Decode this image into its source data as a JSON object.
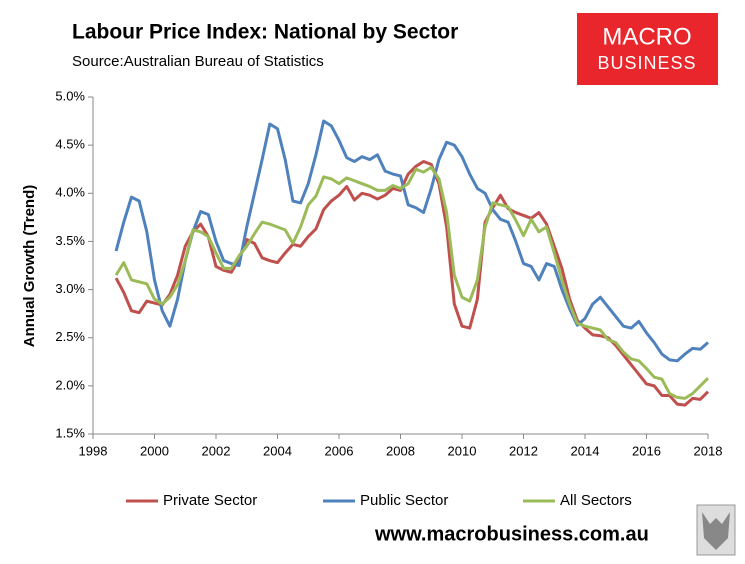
{
  "chart_data": {
    "type": "line",
    "title": "Labour Price Index: National by Sector",
    "subtitle": "Source:Australian Bureau of Statistics",
    "y_label": "Annual Growth (Trend)",
    "logo": {
      "line1": "MACRO",
      "line2": "BUSINESS"
    },
    "footer": "www.macrobusiness.com.au",
    "xlim": [
      1998,
      2018
    ],
    "xticks": [
      1998,
      2000,
      2002,
      2004,
      2006,
      2008,
      2010,
      2012,
      2014,
      2016,
      2018
    ],
    "ylim": [
      1.5,
      5
    ],
    "yticks": [
      {
        "value": 1.5,
        "label": "1.5%"
      },
      {
        "value": 2,
        "label": "2.0%"
      },
      {
        "value": 2.5,
        "label": "2.5%"
      },
      {
        "value": 3,
        "label": "3.0%"
      },
      {
        "value": 3.5,
        "label": "3.5%"
      },
      {
        "value": 4,
        "label": "4.0%"
      },
      {
        "value": 4.5,
        "label": "4.5%"
      },
      {
        "value": 5,
        "label": "5.0%"
      }
    ],
    "grid": false,
    "legend": "bottom",
    "x": [
      1998.75,
      1999,
      1999.25,
      1999.5,
      1999.75,
      2000,
      2000.25,
      2000.5,
      2000.75,
      2001,
      2001.25,
      2001.5,
      2001.75,
      2002,
      2002.25,
      2002.5,
      2002.75,
      2003,
      2003.25,
      2003.5,
      2003.75,
      2004,
      2004.25,
      2004.5,
      2004.75,
      2005,
      2005.25,
      2005.5,
      2005.75,
      2006,
      2006.25,
      2006.5,
      2006.75,
      2007,
      2007.25,
      2007.5,
      2007.75,
      2008,
      2008.25,
      2008.5,
      2008.75,
      2009,
      2009.25,
      2009.5,
      2009.75,
      2010,
      2010.25,
      2010.5,
      2010.75,
      2011,
      2011.25,
      2011.5,
      2011.75,
      2012,
      2012.25,
      2012.5,
      2012.75,
      2013,
      2013.25,
      2013.5,
      2013.75,
      2014,
      2014.25,
      2014.5,
      2014.75,
      2015,
      2015.25,
      2015.5,
      2015.75,
      2016,
      2016.25,
      2016.5,
      2016.75,
      2017,
      2017.25,
      2017.5,
      2017.75,
      2018
    ],
    "series": [
      {
        "name": "Private Sector",
        "color": "#c0504d",
        "values": [
          3.12,
          2.97,
          2.78,
          2.76,
          2.88,
          2.86,
          2.84,
          2.95,
          3.15,
          3.45,
          3.6,
          3.68,
          3.55,
          3.24,
          3.2,
          3.18,
          3.32,
          3.52,
          3.48,
          3.33,
          3.3,
          3.28,
          3.38,
          3.47,
          3.45,
          3.55,
          3.63,
          3.83,
          3.92,
          3.98,
          4.07,
          3.93,
          4.0,
          3.98,
          3.94,
          3.98,
          4.05,
          4.03,
          4.2,
          4.28,
          4.33,
          4.3,
          4.1,
          3.65,
          2.85,
          2.62,
          2.6,
          2.9,
          3.7,
          3.85,
          3.98,
          3.84,
          3.8,
          3.77,
          3.74,
          3.8,
          3.68,
          3.45,
          3.22,
          2.9,
          2.68,
          2.6,
          2.53,
          2.52,
          2.5,
          2.42,
          2.32,
          2.22,
          2.12,
          2.02,
          2.0,
          1.9,
          1.9,
          1.81,
          1.8,
          1.87,
          1.86,
          1.94
        ]
      },
      {
        "name": "Public Sector",
        "color": "#4f81bd",
        "values": [
          3.4,
          3.7,
          3.96,
          3.92,
          3.6,
          3.1,
          2.78,
          2.62,
          2.9,
          3.3,
          3.6,
          3.81,
          3.78,
          3.5,
          3.3,
          3.27,
          3.25,
          3.65,
          4.0,
          4.35,
          4.72,
          4.67,
          4.35,
          3.92,
          3.9,
          4.1,
          4.4,
          4.75,
          4.7,
          4.55,
          4.37,
          4.33,
          4.38,
          4.35,
          4.4,
          4.23,
          4.2,
          4.18,
          3.88,
          3.85,
          3.8,
          4.05,
          4.35,
          4.53,
          4.5,
          4.38,
          4.2,
          4.05,
          4.0,
          3.83,
          3.73,
          3.7,
          3.5,
          3.27,
          3.24,
          3.1,
          3.27,
          3.24,
          3.0,
          2.8,
          2.63,
          2.7,
          2.85,
          2.92,
          2.82,
          2.72,
          2.62,
          2.6,
          2.67,
          2.55,
          2.45,
          2.33,
          2.27,
          2.26,
          2.33,
          2.39,
          2.38,
          2.45
        ]
      },
      {
        "name": "All Sectors",
        "color": "#9bbb59",
        "values": [
          3.15,
          3.28,
          3.1,
          3.08,
          3.06,
          2.9,
          2.85,
          2.92,
          3.05,
          3.3,
          3.62,
          3.6,
          3.55,
          3.38,
          3.22,
          3.22,
          3.35,
          3.45,
          3.58,
          3.7,
          3.68,
          3.65,
          3.62,
          3.48,
          3.65,
          3.88,
          3.97,
          4.17,
          4.15,
          4.1,
          4.16,
          4.13,
          4.1,
          4.07,
          4.03,
          4.03,
          4.08,
          4.05,
          4.1,
          4.25,
          4.22,
          4.27,
          4.15,
          3.8,
          3.15,
          2.92,
          2.88,
          3.1,
          3.65,
          3.9,
          3.88,
          3.86,
          3.72,
          3.56,
          3.73,
          3.6,
          3.65,
          3.38,
          3.1,
          2.85,
          2.65,
          2.62,
          2.6,
          2.58,
          2.48,
          2.45,
          2.35,
          2.28,
          2.26,
          2.18,
          2.09,
          2.07,
          1.92,
          1.88,
          1.87,
          1.92,
          2.0,
          2.08
        ]
      }
    ]
  }
}
